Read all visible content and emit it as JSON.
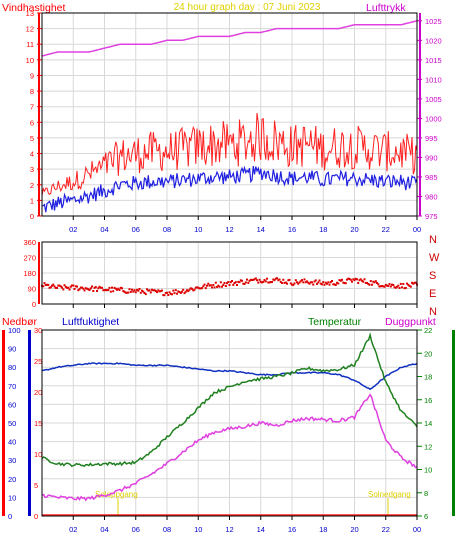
{
  "panels": {
    "top": {
      "title": "24 hour graph day : 07 Juni 2023",
      "left_label": "Vindhastighet",
      "right_label": "Lufttrykk",
      "left_ticks": [
        "0",
        "1",
        "2",
        "3",
        "4",
        "5",
        "6",
        "7",
        "8",
        "9",
        "10",
        "11",
        "12",
        "13"
      ],
      "right_ticks": [
        "975",
        "980",
        "985",
        "990",
        "995",
        "1000",
        "1005",
        "1010",
        "1015",
        "1020",
        "1025"
      ],
      "x_ticks": [
        "02",
        "04",
        "06",
        "08",
        "10",
        "12",
        "14",
        "16",
        "18",
        "20",
        "22",
        "00"
      ]
    },
    "middle": {
      "left_ticks": [
        "0",
        "90",
        "180",
        "270",
        "360"
      ],
      "direction_labels": [
        "N",
        "W",
        "S",
        "E",
        "N"
      ],
      "x_ticks": [
        "02",
        "04",
        "06",
        "08",
        "10",
        "12",
        "14",
        "16",
        "18",
        "20",
        "22",
        "00"
      ]
    },
    "bottom": {
      "label_precip": "Nedbør",
      "label_humidity": "Luftfuktighet",
      "label_temp": "Temperatur",
      "label_dew": "Duggpunkt",
      "precip_ticks": [
        "0",
        "10",
        "20",
        "30",
        "40",
        "50",
        "60",
        "70",
        "80",
        "90",
        "100"
      ],
      "humidity_ticks": [
        "0",
        "5",
        "10",
        "15",
        "20",
        "25",
        "30"
      ],
      "temp_ticks": [
        "6",
        "8",
        "10",
        "12",
        "14",
        "16",
        "18",
        "20",
        "22"
      ],
      "x_ticks": [
        "02",
        "04",
        "06",
        "08",
        "10",
        "12",
        "14",
        "16",
        "18",
        "20",
        "22",
        "00"
      ],
      "annotations": [
        "Soloppgang",
        "Solnedgang"
      ]
    }
  },
  "colors": {
    "wind_gust": "#ff2020",
    "wind_avg": "#2020e0",
    "pressure": "#e040e0",
    "direction": "#dd0000",
    "humidity": "#1030c0",
    "temperature": "#208020",
    "dewpoint": "#e040e0",
    "precip": "#ff2020",
    "left_axis_red": "#ff0000",
    "axis_blue": "#0000cc",
    "axis_green": "#008000",
    "title_yellow": "#e0d000"
  },
  "chart_data": [
    {
      "type": "line",
      "title": "24 hour graph day : 07 Juni 2023",
      "x": [
        0,
        1,
        2,
        3,
        4,
        5,
        6,
        7,
        8,
        9,
        10,
        11,
        12,
        13,
        14,
        15,
        16,
        17,
        18,
        19,
        20,
        21,
        22,
        23,
        24
      ],
      "series": [
        {
          "name": "Vindhastighet",
          "values": [
            0.5,
            0.8,
            1.0,
            1.3,
            1.6,
            2.0,
            2.1,
            2.2,
            2.2,
            2.3,
            2.4,
            2.5,
            2.5,
            2.6,
            2.8,
            2.6,
            2.4,
            2.5,
            2.3,
            2.4,
            2.4,
            2.3,
            2.2,
            2.2,
            2.0
          ]
        },
        {
          "name": "Lufttrykk",
          "values": [
            1016,
            1017,
            1017,
            1017,
            1018,
            1019,
            1019,
            1019,
            1020,
            1020,
            1021,
            1021,
            1021,
            1022,
            1022,
            1023,
            1023,
            1023,
            1023,
            1023,
            1024,
            1024,
            1024,
            1024,
            1025
          ]
        }
      ],
      "ylim_left": [
        0,
        13
      ],
      "ylim_right": [
        975,
        1027
      ]
    },
    {
      "type": "scatter",
      "x": [
        0,
        1,
        2,
        3,
        4,
        5,
        6,
        7,
        8,
        9,
        10,
        11,
        12,
        13,
        14,
        15,
        16,
        17,
        18,
        19,
        20,
        21,
        22,
        23,
        24
      ],
      "series": [
        {
          "values": [
            110,
            95,
            95,
            90,
            85,
            80,
            75,
            70,
            65,
            75,
            95,
            110,
            120,
            130,
            140,
            140,
            125,
            130,
            120,
            125,
            140,
            125,
            110,
            105,
            110
          ]
        }
      ],
      "ylim": [
        0,
        360
      ]
    },
    {
      "type": "line",
      "x": [
        0,
        1,
        2,
        3,
        4,
        5,
        6,
        7,
        8,
        9,
        10,
        11,
        12,
        13,
        14,
        15,
        16,
        17,
        18,
        19,
        20,
        21,
        22,
        23,
        24
      ],
      "series": [
        {
          "name": "Luftfuktighet",
          "values": [
            78,
            80,
            81,
            82,
            82,
            82,
            81,
            81,
            81,
            80,
            79,
            78,
            78,
            77,
            76,
            76,
            77,
            77,
            77,
            76,
            73,
            68,
            75,
            80,
            82
          ]
        },
        {
          "name": "Temperatur",
          "values": [
            11.0,
            10.5,
            10.4,
            10.4,
            10.5,
            10.5,
            10.6,
            11.5,
            12.8,
            14.0,
            15.3,
            16.6,
            17.1,
            17.6,
            17.8,
            18.0,
            18.3,
            18.7,
            18.5,
            18.6,
            19.0,
            21.5,
            17.5,
            15.0,
            13.7
          ]
        },
        {
          "name": "Duggpunkt",
          "values": [
            7.8,
            7.6,
            7.5,
            7.5,
            7.8,
            8.2,
            8.8,
            9.6,
            10.5,
            11.5,
            12.5,
            13.2,
            13.5,
            13.7,
            14.0,
            13.8,
            14.2,
            14.4,
            14.3,
            14.2,
            14.5,
            16.5,
            12.5,
            11.0,
            10.2
          ]
        }
      ],
      "ylim_humidity": [
        0,
        100
      ],
      "ylim_temp": [
        6,
        22
      ],
      "precipitation": [
        0,
        0,
        0,
        0,
        0,
        0,
        0,
        0,
        0,
        0,
        0,
        0,
        0,
        0,
        0,
        0,
        0,
        0,
        0,
        0,
        0,
        0,
        0,
        0,
        0
      ]
    }
  ]
}
